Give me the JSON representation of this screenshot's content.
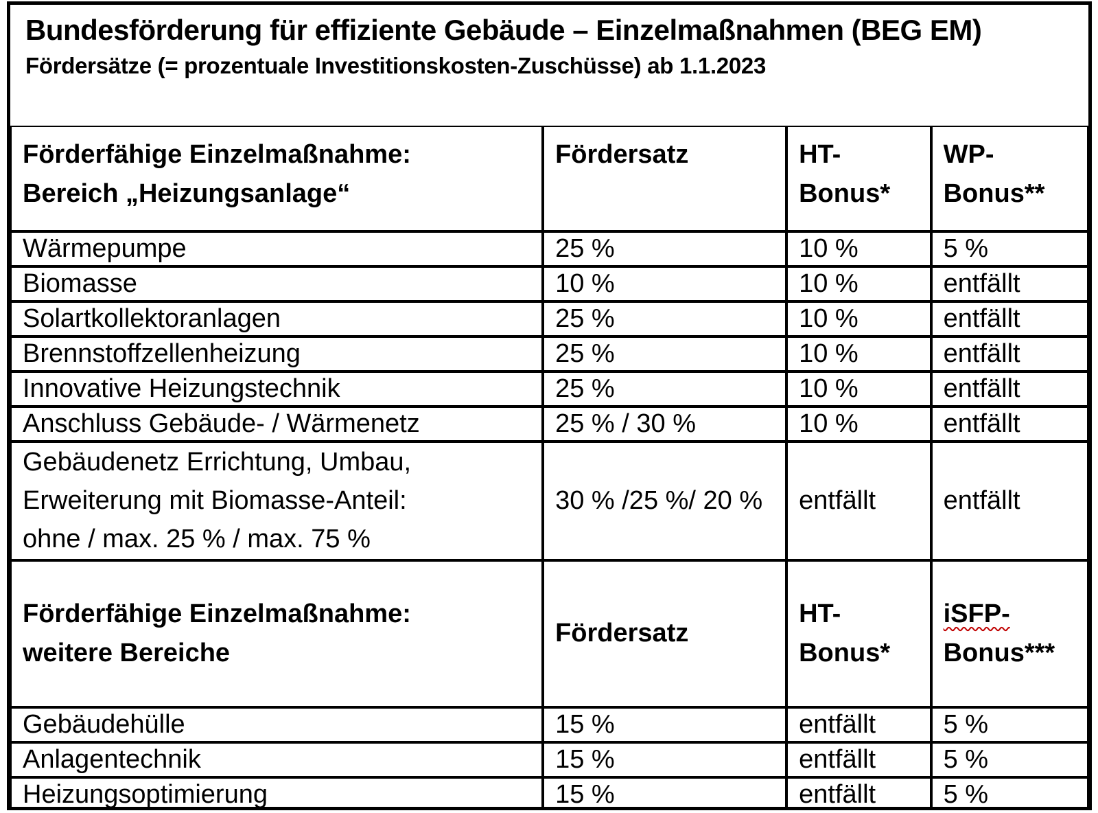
{
  "document": {
    "title": "Bundesförderung für effiziente Gebäude – Einzelmaßnahmen (BEG EM)",
    "subtitle": "Fördersätze (= prozentuale Investitionskosten-Zuschüsse) ab 1.1.2023"
  },
  "heating_section": {
    "header": {
      "measure_line1": "Förderfähige Einzelmaßnahme:",
      "measure_line2": "Bereich „Heizungsanlage“",
      "rate": "Fördersatz",
      "ht_bonus_line1": "HT-",
      "ht_bonus_line2": "Bonus*",
      "wp_bonus_line1": "WP-",
      "wp_bonus_line2": "Bonus**"
    },
    "rows": [
      {
        "measure": "Wärmepumpe",
        "rate": "25 %",
        "ht": "10 %",
        "bonus2": "5 %"
      },
      {
        "measure": "Biomasse",
        "rate": "10 %",
        "ht": "10 %",
        "bonus2": "entfällt"
      },
      {
        "measure": "Solartkollektoranlagen",
        "rate": "25 %",
        "ht": "10 %",
        "bonus2": "entfällt"
      },
      {
        "measure": "Brennstoffzellenheizung",
        "rate": "25 %",
        "ht": "10 %",
        "bonus2": "entfällt"
      },
      {
        "measure": "Innovative Heizungstechnik",
        "rate": "25 %",
        "ht": "10 %",
        "bonus2": "entfällt"
      },
      {
        "measure": "Anschluss Gebäude- / Wärmenetz",
        "rate": "25 % / 30 %",
        "ht": "10 %",
        "bonus2": "entfällt"
      },
      {
        "measure": "Gebäudenetz Errichtung, Umbau,\nErweiterung mit Biomasse-Anteil:\nohne / max. 25 % / max. 75 %",
        "rate": "30 % /25 %/ 20 %",
        "ht": "entfällt",
        "bonus2": "entfällt"
      }
    ]
  },
  "other_section": {
    "header": {
      "measure_line1": "Förderfähige Einzelmaßnahme:",
      "measure_line2": "weitere Bereiche",
      "rate": "Fördersatz",
      "ht_bonus_line1": "HT-",
      "ht_bonus_line2": "Bonus*",
      "isfp_bonus_line1": "iSFP-",
      "isfp_bonus_line2": "Bonus***"
    },
    "rows": [
      {
        "measure": "Gebäudehülle",
        "rate": "15 %",
        "ht": "entfällt",
        "bonus2": "5 %"
      },
      {
        "measure": "Anlagentechnik",
        "rate": "15 %",
        "ht": "entfällt",
        "bonus2": "5 %"
      },
      {
        "measure": "Heizungsoptimierung",
        "rate": "15 %",
        "ht": "entfällt",
        "bonus2": "5 %"
      }
    ]
  },
  "colors": {
    "text": "#000000",
    "border": "#000000",
    "background": "#ffffff",
    "spellcheck_underline": "#c00000"
  }
}
